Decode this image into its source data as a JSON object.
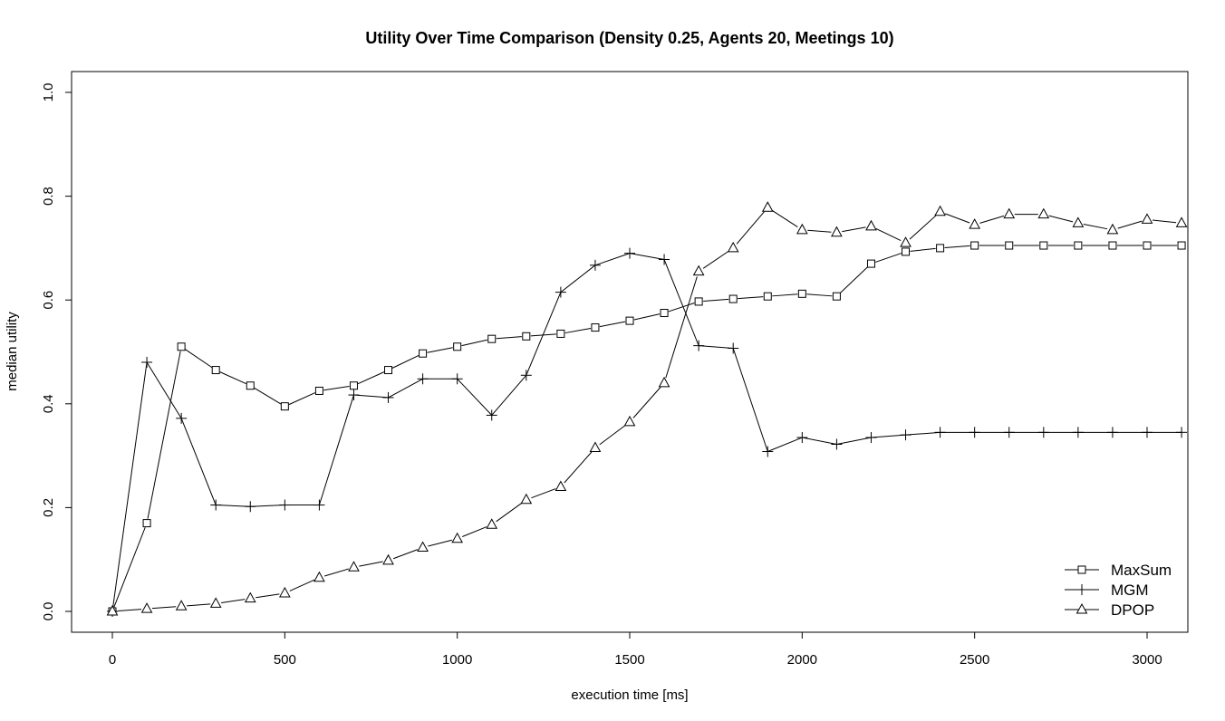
{
  "chart_data": {
    "type": "line",
    "title": "Utility Over Time Comparison (Density 0.25, Agents 20, Meetings 10)",
    "xlabel": "execution time [ms]",
    "ylabel": "median utility",
    "xlim": [
      0,
      3100
    ],
    "ylim": [
      0.0,
      1.0
    ],
    "xticks": [
      0,
      500,
      1000,
      1500,
      2000,
      2500,
      3000
    ],
    "yticks": [
      0.0,
      0.2,
      0.4,
      0.6,
      0.8,
      1.0
    ],
    "xtick_labels": [
      "0",
      "500",
      "1000",
      "1500",
      "2000",
      "2500",
      "3000"
    ],
    "ytick_labels": [
      "0.0",
      "0.2",
      "0.4",
      "0.6",
      "0.8",
      "1.0"
    ],
    "grid": false,
    "legend_position": "bottom-right",
    "x": [
      0,
      100,
      200,
      300,
      400,
      500,
      600,
      700,
      800,
      900,
      1000,
      1100,
      1200,
      1300,
      1400,
      1500,
      1600,
      1700,
      1800,
      1900,
      2000,
      2100,
      2200,
      2300,
      2400,
      2500,
      2600,
      2700,
      2800,
      2900,
      3000,
      3100
    ],
    "series": [
      {
        "name": "MaxSum",
        "marker": "square",
        "values": [
          0.0,
          0.17,
          0.51,
          0.465,
          0.435,
          0.395,
          0.425,
          0.435,
          0.465,
          0.497,
          0.51,
          0.525,
          0.53,
          0.535,
          0.547,
          0.56,
          0.575,
          0.597,
          0.602,
          0.607,
          0.612,
          0.607,
          0.67,
          0.693,
          0.7,
          0.705,
          0.705,
          0.705,
          0.705,
          0.705,
          0.705,
          0.705
        ]
      },
      {
        "name": "MGM",
        "marker": "plus",
        "values": [
          0.0,
          0.48,
          0.372,
          0.205,
          0.202,
          0.205,
          0.205,
          0.417,
          0.412,
          0.448,
          0.448,
          0.378,
          0.455,
          0.615,
          0.667,
          0.69,
          0.678,
          0.512,
          0.507,
          0.308,
          0.335,
          0.322,
          0.335,
          0.34,
          0.345,
          0.345,
          0.345,
          0.345,
          0.345,
          0.345,
          0.345,
          0.345
        ]
      },
      {
        "name": "DPOP",
        "marker": "triangle",
        "values": [
          0.0,
          0.005,
          0.01,
          0.015,
          0.025,
          0.035,
          0.065,
          0.085,
          0.098,
          0.123,
          0.14,
          0.167,
          0.215,
          0.24,
          0.315,
          0.365,
          0.44,
          0.655,
          0.7,
          0.778,
          0.735,
          0.73,
          0.742,
          0.71,
          0.77,
          0.745,
          0.765,
          0.765,
          0.748,
          0.735,
          0.755,
          0.748
        ]
      }
    ]
  }
}
